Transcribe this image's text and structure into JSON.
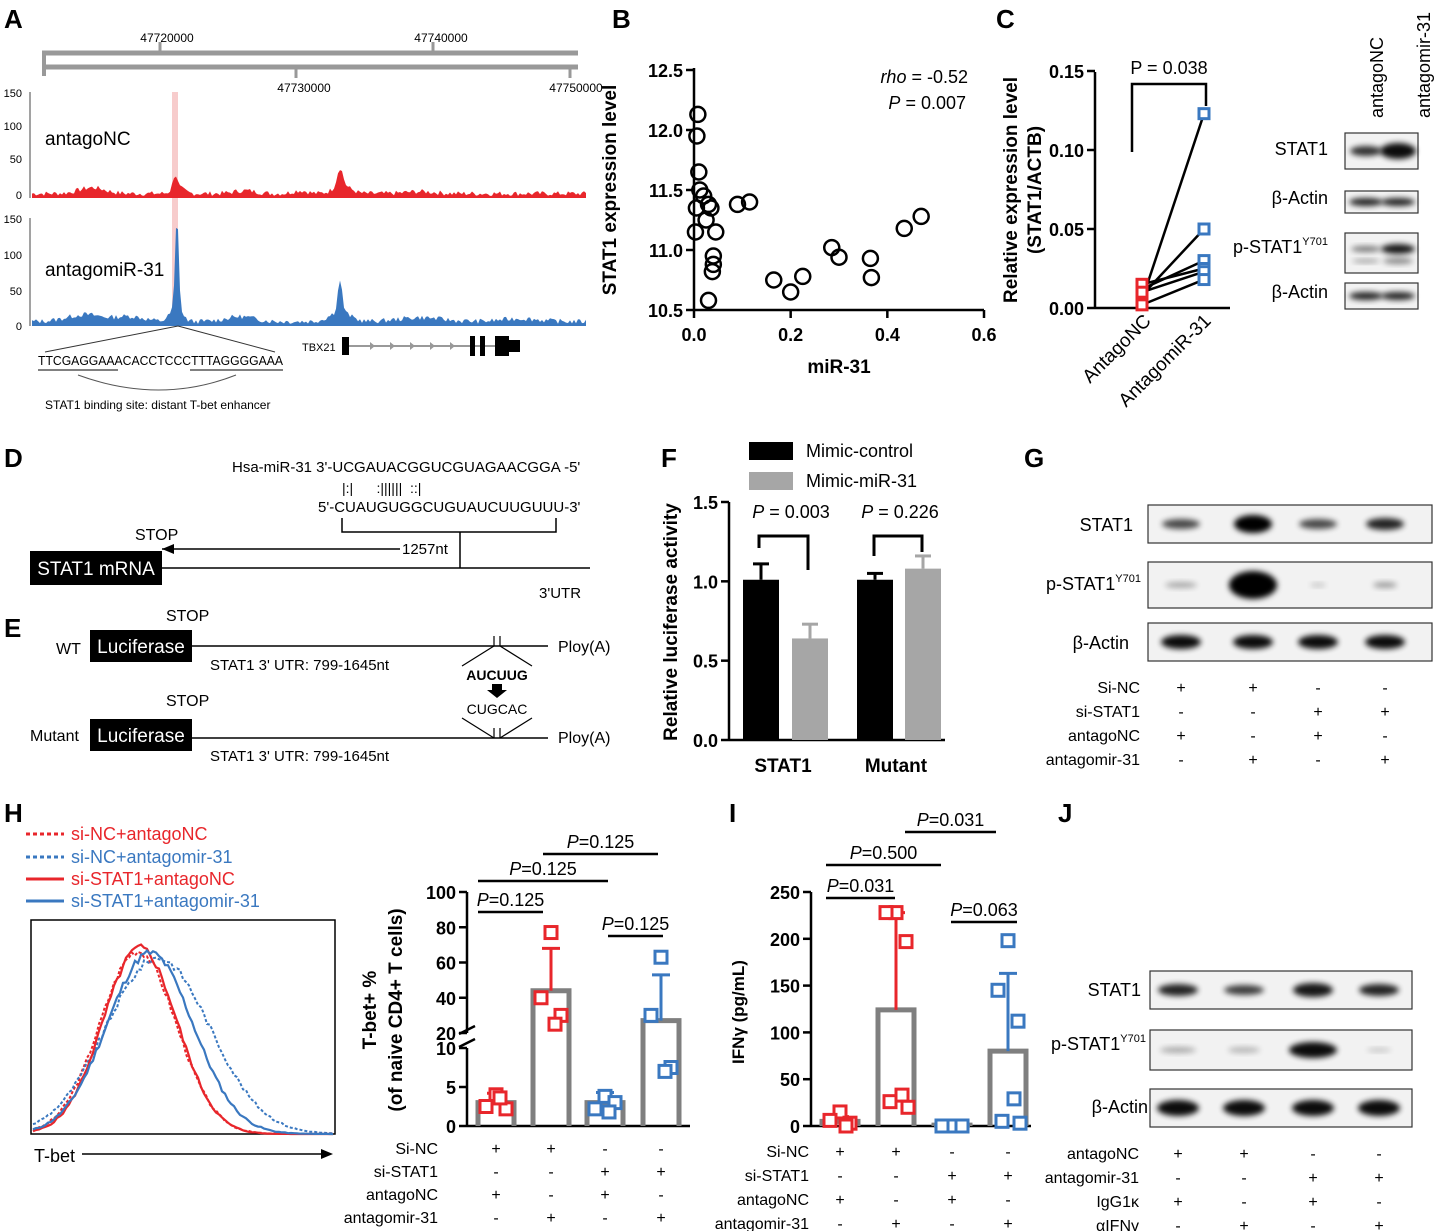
{
  "colors": {
    "red": "#e8262b",
    "blue": "#3a78c0",
    "gray": "#7f7f7f",
    "lightgray": "#a6a6a6",
    "black": "#000000"
  },
  "panel_labels": [
    "A",
    "B",
    "C",
    "D",
    "E",
    "F",
    "G",
    "H",
    "I",
    "J"
  ],
  "A": {
    "coords_top": [
      "47720000",
      "47740000"
    ],
    "coords_bottom": [
      "47730000",
      "47750000"
    ],
    "yticks": [
      "150",
      "100",
      "50",
      "0"
    ],
    "track1_label": "antagoNC",
    "track2_label": "antagomiR-31",
    "sequence": "TTCGAGGAAACACCTCCCTTTAGGGGAAA",
    "binding_caption": "STAT1 binding site: distant T-bet enhancer",
    "gene_label": "TBX21"
  },
  "D": {
    "mir_seq": "Hsa-miR-31 3'-UCGAUACGGUCGUAGAACGGA -5'",
    "pairing": "|:|      :||||||  ::|",
    "target_seq": "5'-CUAUGUGGCUGUAUCUUGUUU-3'",
    "stop": "STOP",
    "nt": "1257nt",
    "mrna": "STAT1 mRNA",
    "utr": "3'UTR"
  },
  "E": {
    "wt": "WT",
    "mutant": "Mutant",
    "luciferase": "Luciferase",
    "stop": "STOP",
    "utr_range": "STAT1 3' UTR: 799-1645nt",
    "polya": "Ploy(A)",
    "seed_wt": "AUCUUG",
    "seed_mut": "CUGCAC"
  },
  "G": {
    "blot_labels": [
      "STAT1",
      "p-STAT1",
      "β-Actin"
    ],
    "superscript": "Y701",
    "row_labels": [
      "Si-NC",
      "si-STAT1",
      "antagoNC",
      "antagomir-31"
    ],
    "signs": [
      [
        "+",
        "+",
        "-",
        "-"
      ],
      [
        "-",
        "-",
        "+",
        "+"
      ],
      [
        "+",
        "-",
        "+",
        "-"
      ],
      [
        "-",
        "+",
        "-",
        "+"
      ]
    ]
  },
  "J": {
    "blot_labels": [
      "STAT1",
      "p-STAT1",
      "β-Actin"
    ],
    "superscript": "Y701",
    "row_labels": [
      "antagoNC",
      "antagomir-31",
      "IgG1κ",
      "αIFNγ"
    ],
    "signs": [
      [
        "+",
        "+",
        "-",
        "-"
      ],
      [
        "-",
        "-",
        "+",
        "+"
      ],
      [
        "+",
        "-",
        "+",
        "-"
      ],
      [
        "-",
        "+",
        "-",
        "+"
      ]
    ]
  },
  "C_blot": {
    "col_labels": [
      "antagoNC",
      "antagomir-31"
    ],
    "row_labels": [
      "STAT1",
      "β-Actin",
      "p-STAT1",
      "β-Actin"
    ],
    "superscript": "Y701"
  },
  "H_hist": {
    "legend": [
      "si-NC+antagoNC",
      "si-NC+antagomir-31",
      "si-STAT1+antagoNC",
      "si-STAT1+antagomir-31"
    ],
    "xlabel": "T-bet"
  },
  "chart_data": [
    {
      "id": "B",
      "type": "scatter",
      "xlabel": "miR-31",
      "ylabel": "STAT1 expression level",
      "xlim": [
        0,
        0.6
      ],
      "ylim": [
        10.5,
        12.5
      ],
      "xticks": [
        "0.0",
        "0.2",
        "0.4",
        "0.6"
      ],
      "yticks": [
        "10.5",
        "11.0",
        "11.5",
        "12.0",
        "12.5"
      ],
      "annotation_rho_label": "rho",
      "annotation_rho_value": " = -0.52",
      "annotation_p_label": "P",
      "annotation_p_value": " = 0.007",
      "points": [
        [
          0.008,
          12.13
        ],
        [
          0.006,
          11.95
        ],
        [
          0.01,
          11.65
        ],
        [
          0.012,
          11.5
        ],
        [
          0.005,
          11.35
        ],
        [
          0.003,
          11.15
        ],
        [
          0.02,
          11.45
        ],
        [
          0.03,
          11.38
        ],
        [
          0.035,
          11.35
        ],
        [
          0.025,
          11.25
        ],
        [
          0.045,
          11.15
        ],
        [
          0.04,
          10.95
        ],
        [
          0.04,
          10.88
        ],
        [
          0.038,
          10.82
        ],
        [
          0.03,
          10.58
        ],
        [
          0.09,
          11.38
        ],
        [
          0.115,
          11.4
        ],
        [
          0.165,
          10.75
        ],
        [
          0.2,
          10.65
        ],
        [
          0.225,
          10.78
        ],
        [
          0.285,
          11.02
        ],
        [
          0.3,
          10.94
        ],
        [
          0.365,
          10.93
        ],
        [
          0.367,
          10.77
        ],
        [
          0.435,
          11.18
        ],
        [
          0.47,
          11.28
        ]
      ]
    },
    {
      "id": "C",
      "type": "scatter",
      "ylabel": "Relative expression level (STAT1/ACTB)",
      "ylabel_line1": "Relative expression level",
      "ylabel_line2": "(STAT1/ACTB)",
      "categories": [
        "AntagoNC",
        "AntagomiR-31"
      ],
      "ylim": [
        0,
        0.15
      ],
      "yticks": [
        "0.00",
        "0.05",
        "0.10",
        "0.15"
      ],
      "p_label": "P = 0.038",
      "pairs": [
        [
          0.005,
          0.123
        ],
        [
          0.008,
          0.05
        ],
        [
          0.012,
          0.03
        ],
        [
          0.015,
          0.025
        ],
        [
          0.01,
          0.023
        ],
        [
          0.002,
          0.018
        ]
      ]
    },
    {
      "id": "F",
      "type": "bar",
      "categories": [
        "STAT1",
        "Mutant"
      ],
      "ylabel": "Relative luciferase activity",
      "ylim": [
        0,
        1.5
      ],
      "yticks": [
        "0.0",
        "0.5",
        "1.0",
        "1.5"
      ],
      "series": [
        {
          "name": "Mimic-control",
          "values": [
            1.01,
            1.01
          ],
          "err": [
            0.1,
            0.04
          ]
        },
        {
          "name": "Mimic-miR-31",
          "values": [
            0.64,
            1.08
          ],
          "err": [
            0.09,
            0.08
          ]
        }
      ],
      "pvalues": [
        "P = 0.003",
        "P = 0.226"
      ]
    },
    {
      "id": "H",
      "type": "bar",
      "ylabel_line1": "T-bet+ %",
      "ylabel_line2": "(of naive CD4+ T cells)",
      "yticks_upper": [
        "20",
        "40",
        "60",
        "80",
        "100"
      ],
      "yticks_lower": [
        "0",
        "5",
        "10"
      ],
      "means": [
        3.0,
        44,
        3.0,
        27
      ],
      "sd_tops": [
        4.2,
        68,
        4.3,
        53
      ],
      "points": [
        [
          4.0,
          2.5,
          2.2,
          3.6
        ],
        [
          77,
          40,
          30,
          25
        ],
        [
          3.8,
          2.2,
          3.0,
          1.8
        ],
        [
          63,
          30,
          7.5,
          7.0
        ]
      ],
      "colors": [
        "red",
        "red",
        "blue",
        "blue"
      ],
      "pvalues": [
        "P=0.125",
        "P=0.125",
        "P=0.125",
        "P=0.125"
      ],
      "row_labels": [
        "Si-NC",
        "si-STAT1",
        "antagoNC",
        "antagomir-31"
      ],
      "signs": [
        [
          "+",
          "+",
          "-",
          "-"
        ],
        [
          "-",
          "-",
          "+",
          "+"
        ],
        [
          "+",
          "-",
          "+",
          "-"
        ],
        [
          "-",
          "+",
          "-",
          "+"
        ]
      ]
    },
    {
      "id": "I",
      "type": "bar",
      "ylabel": "IFNγ (pg/mL)",
      "ylim": [
        0,
        250
      ],
      "yticks": [
        "0",
        "50",
        "100",
        "150",
        "200",
        "250"
      ],
      "means": [
        5,
        124,
        1,
        80
      ],
      "sd_tops": [
        10,
        228,
        2,
        163
      ],
      "points": [
        [
          15,
          6,
          3,
          0
        ],
        [
          228,
          228,
          197,
          33,
          26,
          20
        ],
        [
          0,
          0,
          0
        ],
        [
          198,
          145,
          112,
          29,
          5,
          3
        ]
      ],
      "colors": [
        "red",
        "red",
        "blue",
        "blue"
      ],
      "pvalues": [
        "P=0.031",
        "P=0.500",
        "P=0.031",
        "P=0.063"
      ],
      "row_labels": [
        "Si-NC",
        "si-STAT1",
        "antagoNC",
        "antagomir-31"
      ],
      "signs": [
        [
          "+",
          "+",
          "-",
          "-"
        ],
        [
          "-",
          "-",
          "+",
          "+"
        ],
        [
          "+",
          "-",
          "+",
          "-"
        ],
        [
          "-",
          "+",
          "-",
          "+"
        ]
      ]
    }
  ]
}
